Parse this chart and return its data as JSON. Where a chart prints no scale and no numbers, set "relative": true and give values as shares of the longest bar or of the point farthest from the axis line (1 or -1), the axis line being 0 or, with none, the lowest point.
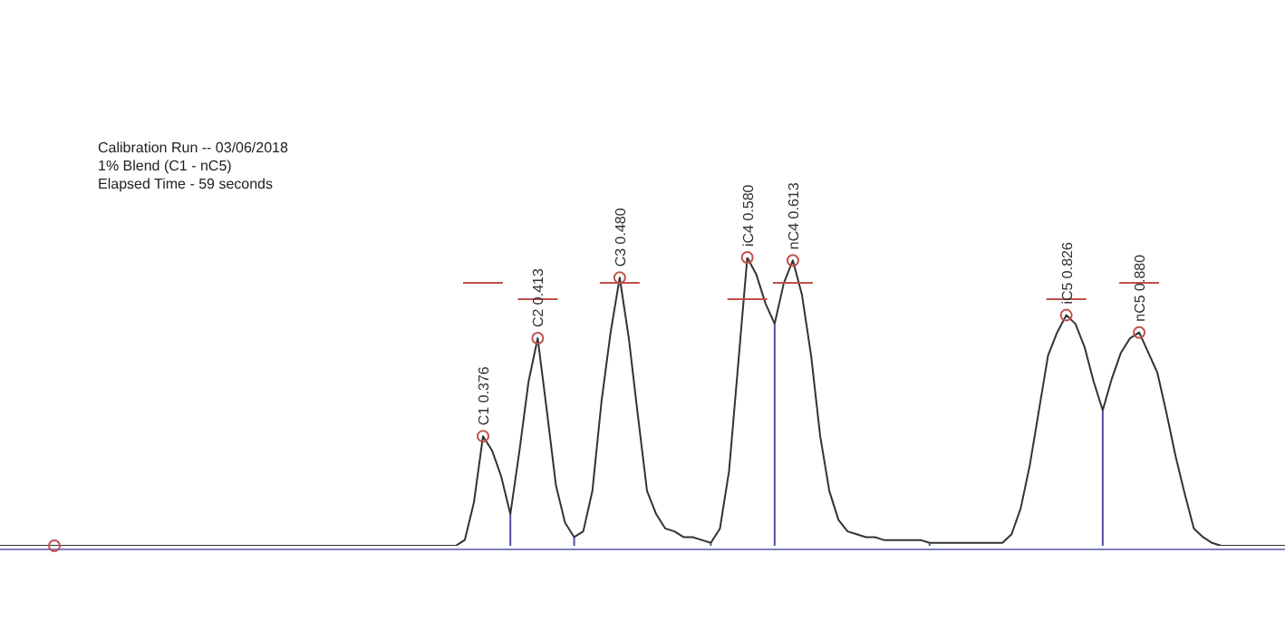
{
  "chart_data": {
    "type": "line",
    "title": "Calibration Run -- 03/06/2018",
    "subtitle": "1% Blend (C1 - nC5)",
    "relative": true,
    "categories": [
      null,
      null,
      null,
      null,
      null,
      null,
      null,
      null,
      null,
      null,
      null,
      null,
      null,
      null,
      null,
      null,
      null,
      null,
      null,
      null,
      null,
      null,
      null,
      null,
      null,
      null,
      null,
      null,
      null,
      null,
      null,
      null,
      null,
      null,
      null,
      null,
      null,
      null,
      null,
      null,
      null,
      null,
      null,
      null,
      null,
      null,
      null,
      null,
      null,
      null,
      null,
      null,
      null,
      null,
      null,
      null,
      null,
      null,
      null,
      null,
      null,
      null,
      null,
      null,
      null,
      null,
      null,
      null,
      null,
      null,
      null,
      null,
      null,
      null,
      null,
      null,
      null,
      null,
      null,
      null,
      null,
      null,
      null,
      null,
      null,
      null,
      null,
      null,
      null,
      null,
      null,
      null,
      null,
      null,
      null,
      null,
      null,
      null,
      null,
      null,
      null,
      null,
      null,
      null,
      null,
      null,
      null,
      null,
      null,
      null,
      null,
      null,
      null,
      null,
      null,
      null,
      null,
      null,
      null,
      null,
      null,
      null,
      null,
      null,
      null,
      null,
      null,
      null,
      null,
      null,
      null,
      null,
      null,
      null,
      null,
      null,
      null,
      null,
      null,
      null,
      null,
      null
    ],
    "series": [
      {
        "color": "#333333",
        "values": [
          0,
          0,
          0,
          0,
          0,
          0,
          0,
          0,
          0,
          0,
          0,
          0,
          0,
          0,
          0,
          0,
          0,
          0,
          0,
          0,
          0,
          0,
          0,
          0,
          0,
          0,
          0,
          0,
          0,
          0,
          0,
          0,
          0,
          0,
          0,
          0,
          0,
          0,
          0,
          0,
          0,
          0,
          0,
          0,
          0,
          0,
          0,
          0,
          0,
          0,
          0,
          0.02,
          0.15,
          0.38,
          0.33,
          0.24,
          0.11,
          0.33,
          0.57,
          0.72,
          0.47,
          0.21,
          0.08,
          0.03,
          0.05,
          0.19,
          0.5,
          0.74,
          0.93,
          0.72,
          0.45,
          0.19,
          0.11,
          0.06,
          0.05,
          0.03,
          0.03,
          0.02,
          0.01,
          0.06,
          0.26,
          0.63,
          1.0,
          0.94,
          0.84,
          0.77,
          0.91,
          0.99,
          0.87,
          0.66,
          0.38,
          0.19,
          0.09,
          0.05,
          0.04,
          0.03,
          0.03,
          0.02,
          0.02,
          0.02,
          0.02,
          0.02,
          0.01,
          0.01,
          0.01,
          0.01,
          0.01,
          0.01,
          0.01,
          0.01,
          0.01,
          0.04,
          0.13,
          0.28,
          0.47,
          0.66,
          0.74,
          0.8,
          0.77,
          0.69,
          0.57,
          0.47,
          0.58,
          0.67,
          0.72,
          0.74,
          0.67,
          0.6,
          0.46,
          0.31,
          0.18,
          0.06,
          0.03,
          0.01,
          0,
          0,
          0,
          0,
          0,
          0,
          0,
          0
        ]
      }
    ],
    "annotations": [
      "Elapsed Time - 59 seconds",
      {
        "text": "C1 0.376",
        "y": 0.38
      },
      {
        "text": "C2 0.413",
        "y": 0.72
      },
      {
        "text": "C3 0.480",
        "y": 0.93
      },
      {
        "text": "iC4 0.580",
        "y": 1.0
      },
      {
        "text": "nC4 0.613",
        "y": 0.99
      },
      {
        "text": "iC5 0.826",
        "y": 0.8
      },
      {
        "text": "nC5 0.880",
        "y": 0.74
      }
    ]
  }
}
